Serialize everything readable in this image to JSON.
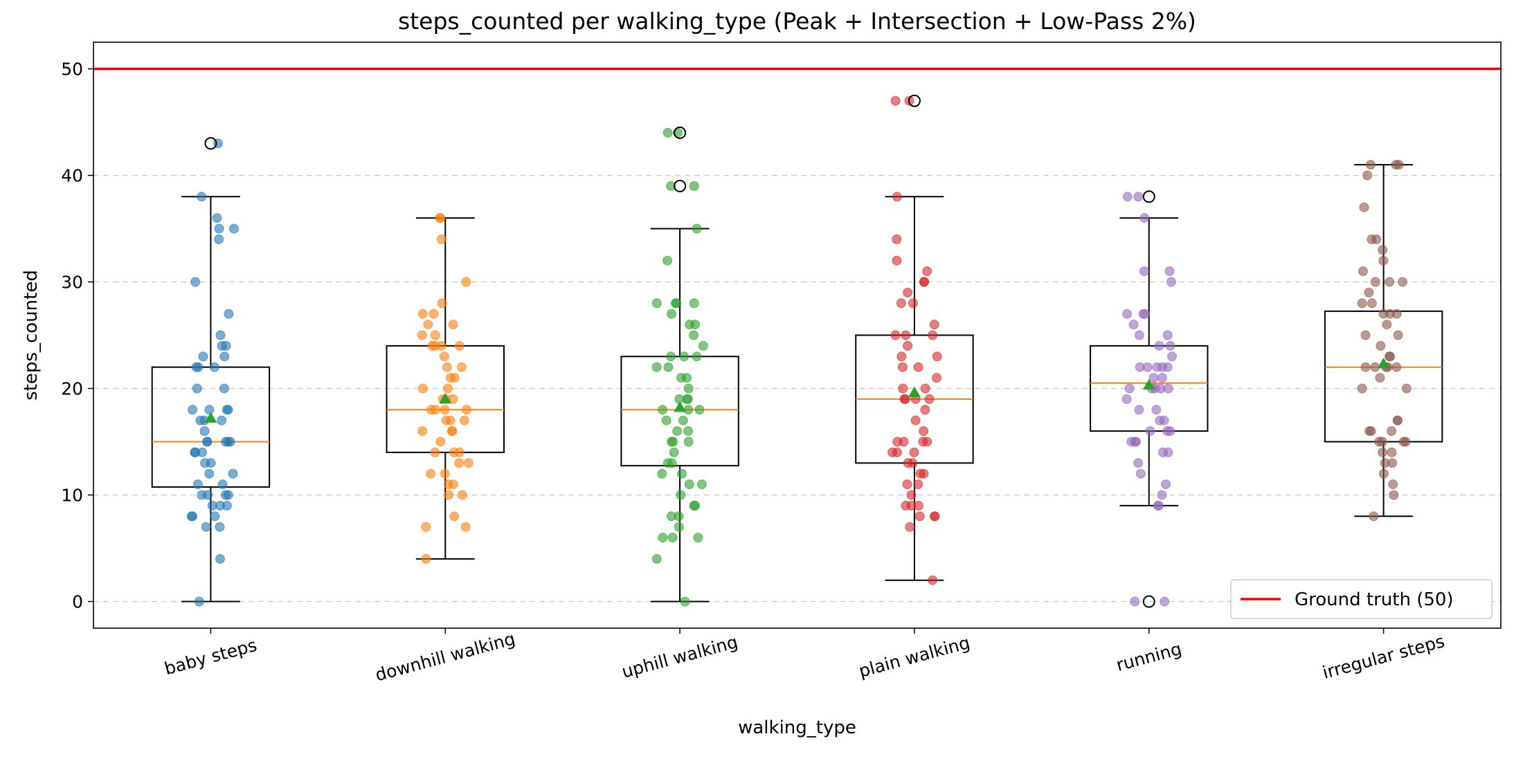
{
  "chart_data": {
    "type": "box",
    "title": "steps_counted per walking_type (Peak + Intersection + Low-Pass 2%)",
    "xlabel": "walking_type",
    "ylabel": "steps_counted",
    "ylim": [
      -2.5,
      52.5
    ],
    "yticks": [
      0,
      10,
      20,
      30,
      40,
      50
    ],
    "grid": "horizontal dashed",
    "legend_position": "lower right",
    "reference_line": {
      "label": "Ground truth (50)",
      "value": 50,
      "color": "#ff0000"
    },
    "categories": [
      "baby steps",
      "downhill walking",
      "uphill walking",
      "plain walking",
      "running",
      "irregular steps"
    ],
    "colors": [
      "#1f77b4",
      "#ff7f0e",
      "#2ca02c",
      "#d62728",
      "#9467bd",
      "#8c564b"
    ],
    "median_color": "#ff7f0e",
    "mean_color": "#2ca02c",
    "boxes": [
      {
        "whislo": 0,
        "q1": 10.75,
        "median": 15,
        "q3": 22,
        "whishi": 38,
        "mean": 17.2,
        "fliers": [
          43
        ]
      },
      {
        "whislo": 4,
        "q1": 14,
        "median": 18,
        "q3": 24,
        "whishi": 36,
        "mean": 19,
        "fliers": []
      },
      {
        "whislo": 0,
        "q1": 12.75,
        "median": 18,
        "q3": 23,
        "whishi": 35,
        "mean": 18.2,
        "fliers": [
          39,
          44
        ]
      },
      {
        "whislo": 2,
        "q1": 13,
        "median": 19,
        "q3": 25,
        "whishi": 38,
        "mean": 19.6,
        "fliers": [
          47
        ]
      },
      {
        "whislo": 9,
        "q1": 16,
        "median": 20.5,
        "q3": 24,
        "whishi": 36,
        "mean": 20.3,
        "fliers": [
          0,
          38
        ]
      },
      {
        "whislo": 8,
        "q1": 15,
        "median": 22,
        "q3": 27.25,
        "whishi": 41,
        "mean": 22.3,
        "fliers": []
      }
    ],
    "points": [
      [
        43,
        38,
        36,
        35,
        35,
        34,
        30,
        27,
        25,
        24,
        24,
        23,
        23,
        22,
        22,
        22,
        20,
        20,
        18,
        18,
        18,
        18,
        17,
        17,
        17,
        16,
        15,
        15,
        15,
        15,
        15,
        14,
        14,
        14,
        13,
        13,
        12,
        12,
        11,
        11,
        10,
        10,
        10,
        10,
        9,
        9,
        9,
        8,
        8,
        8,
        7,
        7,
        4,
        0
      ],
      [
        36,
        36,
        34,
        30,
        28,
        27,
        27,
        26,
        26,
        25,
        25,
        24,
        24,
        24,
        24,
        23,
        22,
        22,
        21,
        21,
        20,
        20,
        19,
        19,
        19,
        18,
        18,
        18,
        18,
        17,
        17,
        17,
        16,
        16,
        16,
        15,
        14,
        14,
        14,
        13,
        13,
        12,
        12,
        11,
        11,
        10,
        10,
        8,
        7,
        7,
        4
      ],
      [
        44,
        44,
        39,
        39,
        35,
        32,
        28,
        28,
        28,
        28,
        27,
        26,
        26,
        25,
        24,
        23,
        23,
        23,
        22,
        22,
        21,
        21,
        20,
        19,
        19,
        19,
        18,
        18,
        18,
        17,
        17,
        16,
        16,
        15,
        15,
        15,
        14,
        13,
        13,
        12,
        12,
        11,
        11,
        10,
        9,
        9,
        8,
        8,
        7,
        6,
        6,
        6,
        4,
        0
      ],
      [
        47,
        47,
        38,
        34,
        32,
        31,
        30,
        30,
        29,
        28,
        28,
        26,
        25,
        25,
        25,
        24,
        23,
        23,
        22,
        22,
        21,
        20,
        20,
        19,
        19,
        19,
        19,
        18,
        17,
        16,
        15,
        15,
        15,
        15,
        14,
        14,
        14,
        13,
        13,
        12,
        12,
        11,
        11,
        10,
        9,
        9,
        9,
        8,
        8,
        8,
        7,
        2
      ],
      [
        38,
        38,
        36,
        31,
        31,
        30,
        27,
        27,
        27,
        26,
        25,
        25,
        24,
        24,
        23,
        22,
        22,
        22,
        22,
        22,
        21,
        21,
        20,
        20,
        20,
        20,
        20,
        19,
        18,
        18,
        17,
        17,
        16,
        16,
        16,
        15,
        15,
        15,
        14,
        14,
        13,
        12,
        11,
        10,
        9,
        9,
        0,
        0
      ],
      [
        41,
        41,
        41,
        40,
        37,
        34,
        34,
        33,
        32,
        31,
        30,
        30,
        30,
        29,
        28,
        28,
        27,
        27,
        27,
        26,
        25,
        25,
        24,
        23,
        23,
        22,
        22,
        22,
        22,
        22,
        21,
        20,
        20,
        17,
        17,
        16,
        16,
        16,
        15,
        15,
        15,
        15,
        14,
        14,
        13,
        13,
        12,
        11,
        10,
        8
      ]
    ]
  }
}
